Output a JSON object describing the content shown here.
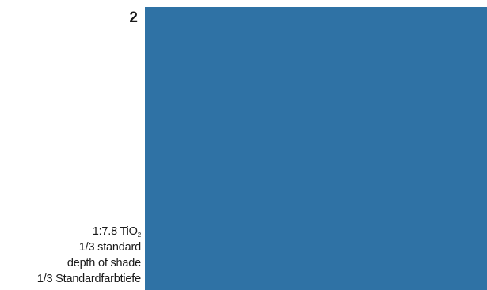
{
  "swatch": {
    "number": "2",
    "color": "#2f72a5"
  },
  "caption": {
    "ratio_prefix": "1:7.8 TiO",
    "ratio_subscript": "2",
    "line_2": "1/3 standard",
    "line_3": "depth of shade",
    "line_4": "1/3 Standardfarbtiefe"
  }
}
